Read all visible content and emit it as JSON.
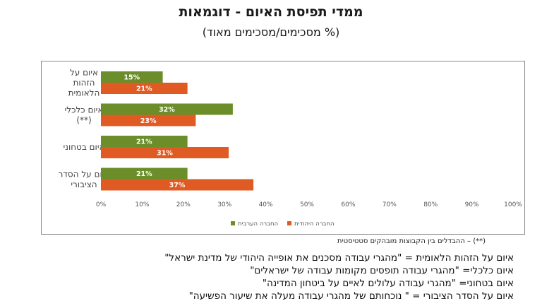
{
  "header": {
    "title": "ממדי תפיסת האיום - דוגמאות",
    "subtitle": "(% מסכימים/מסכימים מאוד)"
  },
  "colors": {
    "arab": "#6b8e2a",
    "jewish": "#e05a24"
  },
  "chart_data": {
    "type": "bar",
    "orientation": "horizontal",
    "categories": [
      [
        "איום על",
        "הזהות",
        "הלאומית"
      ],
      [
        "איום כלכלי",
        "(**)"
      ],
      [
        "איום בטחוני"
      ],
      [
        "איום על הסדר",
        "הציבורי"
      ]
    ],
    "series": [
      {
        "name": "החברה הערבית",
        "values": [
          15,
          32,
          21,
          21
        ]
      },
      {
        "name": "החברה היהודית",
        "values": [
          21,
          23,
          31,
          37
        ]
      }
    ],
    "value_labels": [
      [
        "15%",
        "32%",
        "21%",
        "21%"
      ],
      [
        "21%",
        "23%",
        "31%",
        "37%"
      ]
    ],
    "xlim": [
      0,
      100
    ],
    "xticks": [
      "0%",
      "10%",
      "20%",
      "30%",
      "40%",
      "50%",
      "60%",
      "70%",
      "80%",
      "90%",
      "100%"
    ],
    "grid": false,
    "legend_position": "bottom"
  },
  "footnote": "(**) – ההבדלים בין הקבוצות מובהקים סטטיסטית",
  "notes": [
    "איום על הזהות הלאומית = \"מהגרי עבודה מסכנים את אופייה היהודי של מדינת ישראל\"",
    "איום כלכלי= \"מהגרי עבודה תופסים מקומות עבודה של ישראלים\"",
    "איום בטחוני= \"מהגרי עבודה עלולים לאיים על ביטחון המדינה\"",
    "איום על הסדר הציבורי = \" נוכחותם של מהגרי עבודה מעלה את שיעור הפשיעה\""
  ]
}
